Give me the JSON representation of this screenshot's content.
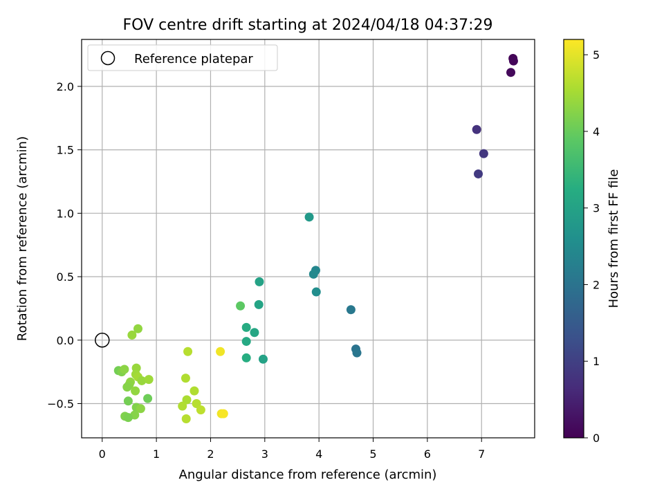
{
  "chart_data": {
    "type": "scatter",
    "title": "FOV centre drift starting at 2024/04/18 04:37:29",
    "xlabel": "Angular distance from reference (arcmin)",
    "ylabel": "Rotation from reference (arcmin)",
    "xlim": [
      -0.38,
      7.98
    ],
    "ylim": [
      -0.77,
      2.37
    ],
    "x_ticks": [
      0,
      1,
      2,
      3,
      4,
      5,
      6,
      7
    ],
    "x_tick_labels": [
      "0",
      "1",
      "2",
      "3",
      "4",
      "5",
      "6",
      "7"
    ],
    "y_ticks": [
      -0.5,
      0.0,
      0.5,
      1.0,
      1.5,
      2.0
    ],
    "y_tick_labels": [
      "−0.5",
      "0.0",
      "0.5",
      "1.0",
      "1.5",
      "2.0"
    ],
    "grid": true,
    "legend": {
      "placement": "top-left",
      "entries": [
        "Reference platepar"
      ]
    },
    "reference_point": {
      "x": 0,
      "y": 0,
      "label": "Reference platepar"
    },
    "colorbar": {
      "label": "Hours from first FF file",
      "colormap": "viridis",
      "range": [
        0,
        5.2
      ],
      "ticks": [
        0,
        1,
        2,
        3,
        4,
        5
      ],
      "tick_labels": [
        "0",
        "1",
        "2",
        "3",
        "4",
        "5"
      ]
    },
    "points": [
      {
        "x": 7.58,
        "y": 2.22,
        "c": 0.05
      },
      {
        "x": 7.59,
        "y": 2.2,
        "c": 0.08
      },
      {
        "x": 7.54,
        "y": 2.11,
        "c": 0.12
      },
      {
        "x": 6.91,
        "y": 1.66,
        "c": 0.75
      },
      {
        "x": 7.04,
        "y": 1.47,
        "c": 0.85
      },
      {
        "x": 6.94,
        "y": 1.31,
        "c": 0.9
      },
      {
        "x": 3.82,
        "y": 0.97,
        "c": 2.8
      },
      {
        "x": 3.94,
        "y": 0.55,
        "c": 2.4
      },
      {
        "x": 3.9,
        "y": 0.52,
        "c": 2.45
      },
      {
        "x": 3.95,
        "y": 0.38,
        "c": 2.55
      },
      {
        "x": 4.59,
        "y": 0.24,
        "c": 2.1
      },
      {
        "x": 4.68,
        "y": -0.07,
        "c": 2.0
      },
      {
        "x": 4.7,
        "y": -0.1,
        "c": 2.05
      },
      {
        "x": 2.9,
        "y": 0.46,
        "c": 3.0
      },
      {
        "x": 2.89,
        "y": 0.28,
        "c": 3.05
      },
      {
        "x": 2.55,
        "y": 0.27,
        "c": 3.9
      },
      {
        "x": 2.66,
        "y": 0.1,
        "c": 3.2
      },
      {
        "x": 2.81,
        "y": 0.06,
        "c": 3.1
      },
      {
        "x": 2.66,
        "y": -0.01,
        "c": 3.15
      },
      {
        "x": 2.66,
        "y": -0.14,
        "c": 3.25
      },
      {
        "x": 2.97,
        "y": -0.15,
        "c": 3.0
      },
      {
        "x": 2.18,
        "y": -0.09,
        "c": 5.1
      },
      {
        "x": 1.58,
        "y": -0.09,
        "c": 4.65
      },
      {
        "x": 1.54,
        "y": -0.3,
        "c": 4.6
      },
      {
        "x": 1.7,
        "y": -0.4,
        "c": 4.6
      },
      {
        "x": 1.56,
        "y": -0.47,
        "c": 4.55
      },
      {
        "x": 1.48,
        "y": -0.52,
        "c": 4.6
      },
      {
        "x": 1.74,
        "y": -0.5,
        "c": 4.65
      },
      {
        "x": 1.82,
        "y": -0.55,
        "c": 4.7
      },
      {
        "x": 2.2,
        "y": -0.58,
        "c": 5.1
      },
      {
        "x": 2.24,
        "y": -0.58,
        "c": 5.15
      },
      {
        "x": 1.55,
        "y": -0.62,
        "c": 4.65
      },
      {
        "x": 0.55,
        "y": 0.04,
        "c": 4.4
      },
      {
        "x": 0.66,
        "y": 0.09,
        "c": 4.35
      },
      {
        "x": 0.3,
        "y": -0.24,
        "c": 4.1
      },
      {
        "x": 0.36,
        "y": -0.25,
        "c": 4.2
      },
      {
        "x": 0.41,
        "y": -0.23,
        "c": 4.3
      },
      {
        "x": 0.63,
        "y": -0.22,
        "c": 4.4
      },
      {
        "x": 0.62,
        "y": -0.27,
        "c": 4.45
      },
      {
        "x": 0.66,
        "y": -0.29,
        "c": 4.5
      },
      {
        "x": 0.73,
        "y": -0.32,
        "c": 4.4
      },
      {
        "x": 0.86,
        "y": -0.31,
        "c": 4.45
      },
      {
        "x": 0.52,
        "y": -0.33,
        "c": 4.35
      },
      {
        "x": 0.5,
        "y": -0.35,
        "c": 4.3
      },
      {
        "x": 0.46,
        "y": -0.37,
        "c": 4.25
      },
      {
        "x": 0.61,
        "y": -0.4,
        "c": 4.35
      },
      {
        "x": 0.84,
        "y": -0.46,
        "c": 4.05
      },
      {
        "x": 0.48,
        "y": -0.48,
        "c": 4.1
      },
      {
        "x": 0.63,
        "y": -0.53,
        "c": 4.2
      },
      {
        "x": 0.71,
        "y": -0.54,
        "c": 4.3
      },
      {
        "x": 0.6,
        "y": -0.59,
        "c": 4.25
      },
      {
        "x": 0.42,
        "y": -0.6,
        "c": 4.2
      },
      {
        "x": 0.48,
        "y": -0.61,
        "c": 4.15
      }
    ]
  }
}
